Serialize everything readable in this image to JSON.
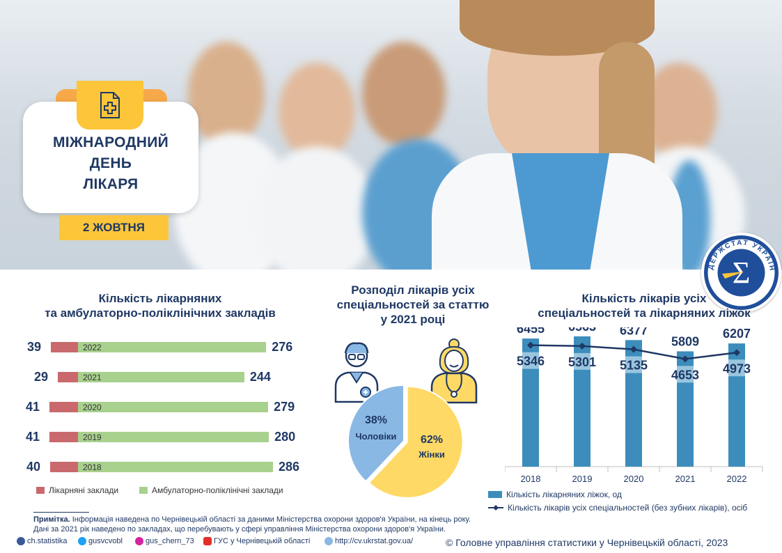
{
  "hero": {
    "title": "МІЖНАРОДНИЙ\nДЕНЬ\nЛІКАРЯ",
    "date": "2 ЖОВТНЯ"
  },
  "logo": {
    "text": "ДЕРЖСТАТ УКРАЇНИ",
    "symbol": "Σ"
  },
  "left_chart": {
    "title": "Кількість лікарняних\nта амбулаторно-поліклінічних закладів",
    "legend": [
      "Лікарняні заклади",
      "Амбулаторно-поліклінічні заклади"
    ],
    "colors": {
      "hospitals": "#c9696d",
      "ambulatory": "#a9d18e"
    }
  },
  "middle_chart": {
    "title": "Розподіл лікарів усіх\nспеціальностей за статтю\nу 2021 році",
    "men_pct": "38%",
    "men_label": "Чоловіки",
    "women_pct": "62%",
    "women_label": "Жінки",
    "colors": {
      "men": "#8ab8e5",
      "women": "#ffd966"
    }
  },
  "right_chart": {
    "title": "Кількість лікарів усіх\nспеціальностей та лікарняних ліжок",
    "legend_bar": "Кількість лікарняних ліжок, од",
    "legend_line": "Кількість лікарів усіх спеціальностей (без зубних лікарів), осіб",
    "colors": {
      "bar": "#3c8dbc",
      "line": "#1f3864"
    }
  },
  "chart_data": [
    {
      "type": "bar",
      "orientation": "horizontal",
      "categories": [
        "2022",
        "2021",
        "2020",
        "2019",
        "2018"
      ],
      "series": [
        {
          "name": "Лікарняні заклади",
          "values": [
            39,
            29,
            41,
            41,
            40
          ]
        },
        {
          "name": "Амбулаторно-поліклінічні заклади",
          "values": [
            276,
            244,
            279,
            280,
            286
          ]
        }
      ]
    },
    {
      "type": "pie",
      "labels": [
        "Чоловіки",
        "Жінки"
      ],
      "values": [
        38,
        62
      ]
    },
    {
      "type": "bar",
      "categories": [
        "2018",
        "2019",
        "2020",
        "2021",
        "2022"
      ],
      "series": [
        {
          "name": "Кількість лікарняних ліжок, од",
          "type": "bar",
          "values": [
            6455,
            6563,
            6377,
            5809,
            6207
          ]
        },
        {
          "name": "Кількість лікарів усіх спеціальностей (без зубних лікарів), осіб",
          "type": "line",
          "values": [
            5346,
            5301,
            5135,
            4653,
            4973
          ]
        }
      ],
      "ylim": [
        0,
        7000
      ]
    }
  ],
  "footer": {
    "note_label": "Примітка.",
    "note_line1": " Інформація наведена по Чернівецькій області за даними Міністерства охорони здоров'я України, на кінець року.",
    "note_line2": "Дані за 2021 рік наведено по закладах, що перебувають у сфері управління Міністерства охорони здоров'я України.",
    "copyright": "© Головне управління статистики у Чернівецькій області, 2023",
    "social": [
      "ch.statistika",
      "gusvcvobl",
      "gus_chern_73",
      "ГУС у Чернівецькій області",
      "http://cv.ukrstat.gov.ua/"
    ]
  }
}
